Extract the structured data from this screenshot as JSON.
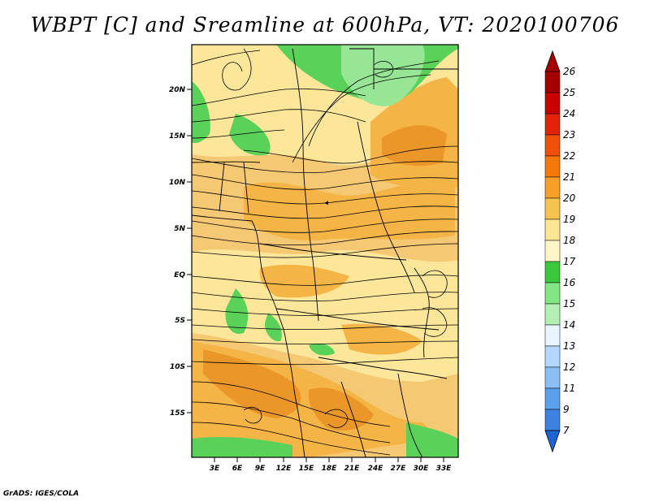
{
  "title": "WBPT [C] and Sreamline at 600hPa, VT: 2020100706",
  "credit": "GrADS: IGES/COLA",
  "map": {
    "lat_labels": [
      "20N",
      "15N",
      "10N",
      "5N",
      "EQ",
      "5S",
      "10S",
      "15S"
    ],
    "lon_labels": [
      "3E",
      "6E",
      "9E",
      "12E",
      "15E",
      "18E",
      "21E",
      "24E",
      "27E",
      "30E",
      "33E"
    ]
  },
  "colorbar": {
    "labels": [
      "26",
      "25",
      "24",
      "23",
      "22",
      "21",
      "20",
      "19",
      "18",
      "17",
      "16",
      "15",
      "14",
      "13",
      "12",
      "11",
      "9",
      "7"
    ],
    "colors": [
      "#a50000",
      "#c80000",
      "#e1230a",
      "#f0500a",
      "#f5780a",
      "#f5a028",
      "#f5c350",
      "#fbe696",
      "#fff5c8",
      "#3cc83c",
      "#82e682",
      "#b4f0b4",
      "#e6f5ff",
      "#b4d7ff",
      "#8cbef5",
      "#5aa0eb",
      "#3c82e1",
      "#1e64d2"
    ]
  },
  "field_colors": {
    "dark_orange": "#eb9628",
    "orange": "#f5b446",
    "light_orange": "#f5c873",
    "yellow": "#fce69a",
    "green": "#5ad25a",
    "light_green": "#96e696"
  }
}
